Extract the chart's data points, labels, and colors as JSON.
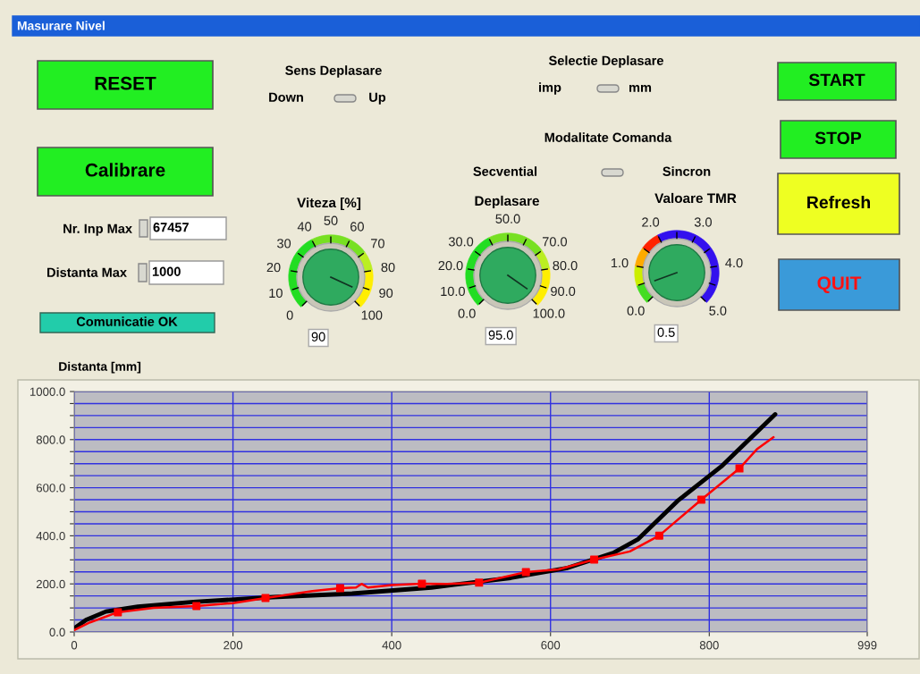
{
  "chart_data": [
    {
      "type": "other",
      "title": "Masurare Nivel",
      "annotations": [
        "RESET",
        "Calibrare",
        "START",
        "STOP",
        "Refresh",
        "QUIT",
        "Sens Deplasare",
        "Down",
        "Up",
        "Selectie Deplasare",
        "imp",
        "mm",
        "Modalitate Comanda",
        "Secvential",
        "Sincron",
        "Nr. Inp Max",
        "67457",
        "Distanta Max",
        "1000",
        "Comunicatie OK"
      ],
      "colors": [
        "#22ee22",
        "#22ee22",
        "#22ee22",
        "#22ee22",
        "#eeff22",
        "#3a9ad9"
      ]
    },
    {
      "type": "other",
      "title": "Viteza [%]",
      "annotations": [
        "0",
        "10",
        "20",
        "30",
        "40",
        "50",
        "60",
        "70",
        "80",
        "90",
        "100",
        "90"
      ]
    },
    {
      "type": "other",
      "title": "Deplasare",
      "annotations": [
        "0.0",
        "10.0",
        "20.0",
        "30.0",
        "50.0",
        "70.0",
        "80.0",
        "90.0",
        "100.0",
        "95.0"
      ]
    },
    {
      "type": "other",
      "title": "Valoare TMR",
      "annotations": [
        "0.0",
        "1.0",
        "2.0",
        "3.0",
        "4.0",
        "5.0",
        "0.5"
      ]
    },
    {
      "type": "line",
      "ylabel": "Distanta [mm]",
      "xlim": [
        0,
        999
      ],
      "ylim": [
        0,
        1000
      ],
      "xticks": [
        0,
        200,
        400,
        600,
        800,
        999
      ],
      "yticks": [
        {
          "value": 0,
          "label": "0.0"
        },
        {
          "value": 50,
          "label": null
        },
        {
          "value": 100,
          "label": null
        },
        {
          "value": 150,
          "label": null
        },
        {
          "value": 200,
          "label": "200.0"
        },
        {
          "value": 250,
          "label": null
        },
        {
          "value": 300,
          "label": null
        },
        {
          "value": 350,
          "label": null
        },
        {
          "value": 400,
          "label": "400.0"
        },
        {
          "value": 450,
          "label": null
        },
        {
          "value": 500,
          "label": null
        },
        {
          "value": 550,
          "label": null
        },
        {
          "value": 600,
          "label": "600.0"
        },
        {
          "value": 650,
          "label": null
        },
        {
          "value": 700,
          "label": null
        },
        {
          "value": 750,
          "label": null
        },
        {
          "value": 800,
          "label": "800.0"
        },
        {
          "value": 850,
          "label": null
        },
        {
          "value": 900,
          "label": null
        },
        {
          "value": 950,
          "label": null
        },
        {
          "value": 1000,
          "label": "1000.0"
        }
      ],
      "grid": true,
      "series": [
        {
          "color": "#000000",
          "x": [
            0,
            15,
            40,
            80,
            150,
            250,
            350,
            450,
            550,
            620,
            680,
            710,
            760,
            815,
            883
          ],
          "values": [
            15,
            50,
            85,
            105,
            125,
            145,
            160,
            185,
            225,
            265,
            330,
            385,
            545,
            688,
            905
          ]
        },
        {
          "color": "#ff0000",
          "x": [
            0,
            20,
            55,
            100,
            154,
            200,
            241,
            300,
            335,
            355,
            362,
            370,
            400,
            438,
            470,
            510,
            569,
            610,
            655,
            700,
            737,
            790,
            838,
            860,
            881
          ],
          "values": [
            8,
            40,
            82,
            100,
            108,
            120,
            141,
            170,
            182,
            185,
            200,
            185,
            195,
            201,
            200,
            205,
            249,
            260,
            301,
            335,
            401,
            550,
            680,
            760,
            810
          ]
        },
        {
          "type": "scatter",
          "marker": "square",
          "color": "#ff0000",
          "x": [
            55,
            154,
            241,
            335,
            438,
            510,
            569,
            655,
            737,
            790,
            838
          ],
          "values": [
            82,
            108,
            141,
            182,
            201,
            205,
            249,
            301,
            401,
            550,
            680
          ]
        }
      ]
    }
  ]
}
